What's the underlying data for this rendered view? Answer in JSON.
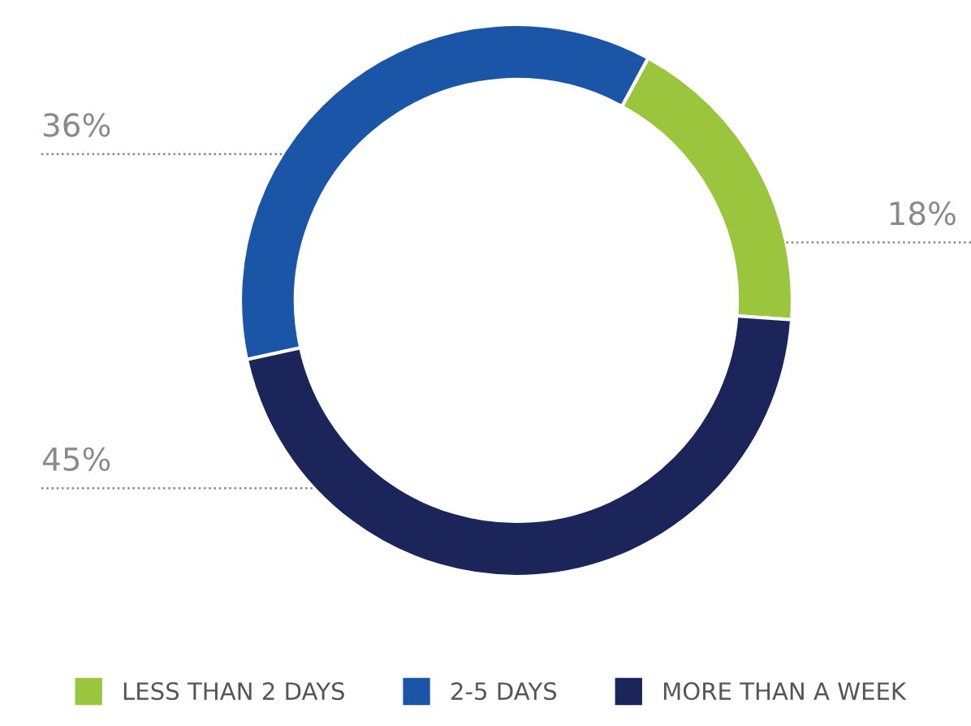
{
  "chart_data": {
    "type": "donut",
    "categories": [
      "LESS THAN 2 DAYS",
      "2-5 DAYS",
      "MORE THAN A WEEK"
    ],
    "values": [
      18,
      36,
      45
    ],
    "colors": [
      "#9bc53d",
      "#1a55a8",
      "#1b2559"
    ],
    "value_labels": [
      "18%",
      "36%",
      "45%"
    ],
    "legend": "bottom"
  }
}
